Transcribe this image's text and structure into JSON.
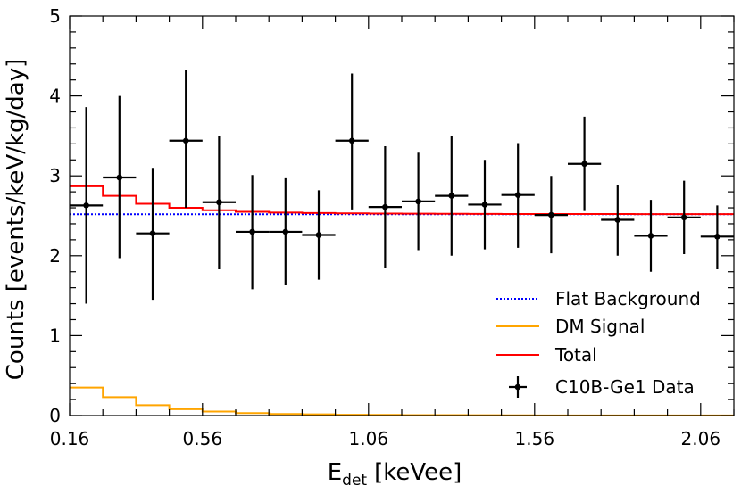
{
  "chart_data": {
    "type": "line",
    "xlabel": "E",
    "xlabel_sub": "det",
    "xlabel_unit": "[keVee]",
    "ylabel": "Counts [events/keV/kg/day]",
    "xlim": [
      0.16,
      2.16
    ],
    "ylim": [
      0,
      5
    ],
    "x_ticks": [
      "0.16",
      "0.56",
      "1.06",
      "1.56",
      "2.06"
    ],
    "y_ticks": [
      "0",
      "1",
      "2",
      "3",
      "4",
      "5"
    ],
    "x_tick_values": [
      0.16,
      0.56,
      1.06,
      1.56,
      2.06
    ],
    "y_tick_values": [
      0,
      1,
      2,
      3,
      4,
      5
    ],
    "bin_edges": [
      0.16,
      0.26,
      0.36,
      0.46,
      0.56,
      0.66,
      0.76,
      0.86,
      0.96,
      1.06,
      1.16,
      1.26,
      1.36,
      1.46,
      1.56,
      1.66,
      1.76,
      1.86,
      1.96,
      2.06,
      2.16
    ],
    "series": [
      {
        "name": "Flat Background",
        "style": "dotted",
        "color": "#0000ff",
        "values": [
          2.52,
          2.52,
          2.52,
          2.52,
          2.52,
          2.52,
          2.52,
          2.52,
          2.52,
          2.52,
          2.52,
          2.52,
          2.52,
          2.52,
          2.52,
          2.52,
          2.52,
          2.52,
          2.52,
          2.52
        ]
      },
      {
        "name": "DM Signal",
        "style": "step",
        "color": "#ffa500",
        "values": [
          0.35,
          0.23,
          0.13,
          0.08,
          0.05,
          0.03,
          0.02,
          0.015,
          0.01,
          0.008,
          0.006,
          0.005,
          0.004,
          0.003,
          0.002,
          0.002,
          0.002,
          0.001,
          0.001,
          0.001
        ]
      },
      {
        "name": "Total",
        "style": "step",
        "color": "#ff0000",
        "values": [
          2.87,
          2.75,
          2.65,
          2.6,
          2.57,
          2.55,
          2.54,
          2.535,
          2.53,
          2.528,
          2.526,
          2.525,
          2.524,
          2.523,
          2.522,
          2.522,
          2.522,
          2.521,
          2.521,
          2.521
        ]
      },
      {
        "name": "C10B-Ge1 Data",
        "style": "errorbar",
        "color": "#000000",
        "x": [
          0.21,
          0.31,
          0.41,
          0.51,
          0.61,
          0.71,
          0.81,
          0.91,
          1.01,
          1.11,
          1.21,
          1.31,
          1.41,
          1.51,
          1.61,
          1.71,
          1.81,
          1.91,
          2.01,
          2.11
        ],
        "values": [
          2.63,
          2.98,
          2.28,
          3.44,
          2.67,
          2.3,
          2.3,
          2.26,
          3.44,
          2.61,
          2.68,
          2.75,
          2.64,
          2.76,
          2.51,
          3.15,
          2.45,
          2.25,
          2.48,
          2.24
        ],
        "err_low": [
          1.4,
          1.97,
          1.45,
          2.6,
          1.83,
          1.58,
          1.63,
          1.7,
          2.58,
          1.85,
          2.07,
          2.0,
          2.08,
          2.1,
          2.03,
          2.56,
          2.0,
          1.8,
          2.02,
          1.83
        ],
        "err_high": [
          3.86,
          4.0,
          3.1,
          4.32,
          3.5,
          3.01,
          2.97,
          2.82,
          4.28,
          3.37,
          3.29,
          3.5,
          3.2,
          3.41,
          3.0,
          3.74,
          2.89,
          2.7,
          2.94,
          2.63
        ]
      }
    ],
    "legend": {
      "placement": "bottom-right",
      "entries": [
        "Flat Background",
        "DM Signal",
        "Total",
        "C10B-Ge1 Data"
      ]
    },
    "grid": false
  }
}
